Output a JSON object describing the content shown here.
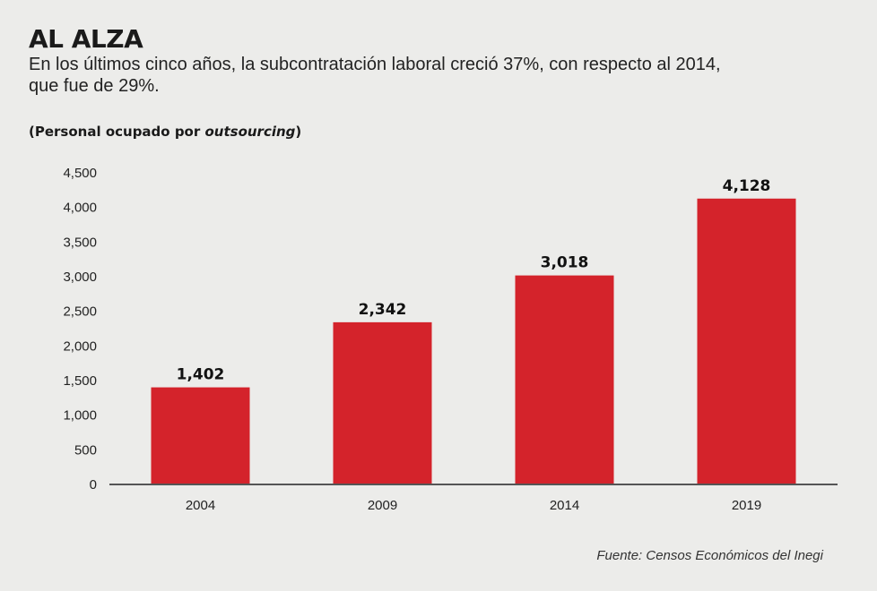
{
  "header": {
    "title": "AL ALZA",
    "subtitle": "En los últimos cinco años, la subcontratación laboral creció 37%, con respecto al 2014, que fue de 29%.",
    "unit_prefix": "(Personal ocupado por ",
    "unit_italic": "outsourcing",
    "unit_suffix": ")"
  },
  "chart_data": {
    "type": "bar",
    "categories": [
      "2004",
      "2009",
      "2014",
      "2019"
    ],
    "values": [
      1402,
      2342,
      3018,
      4128
    ],
    "value_labels": [
      "1,402",
      "2,342",
      "3,018",
      "4,128"
    ],
    "ylim": [
      0,
      4500
    ],
    "yticks": [
      0,
      500,
      1000,
      1500,
      2000,
      2500,
      3000,
      3500,
      4000,
      4500
    ],
    "ytick_labels": [
      "0",
      "500",
      "1,000",
      "1,500",
      "2,000",
      "2,500",
      "3,000",
      "3,500",
      "4,000",
      "4,500"
    ],
    "grid": false,
    "legend": "none",
    "bar_color": "#d4232b",
    "axis_color": "#555555"
  },
  "footer": {
    "source": "Fuente: Censos Económicos del Inegi"
  }
}
